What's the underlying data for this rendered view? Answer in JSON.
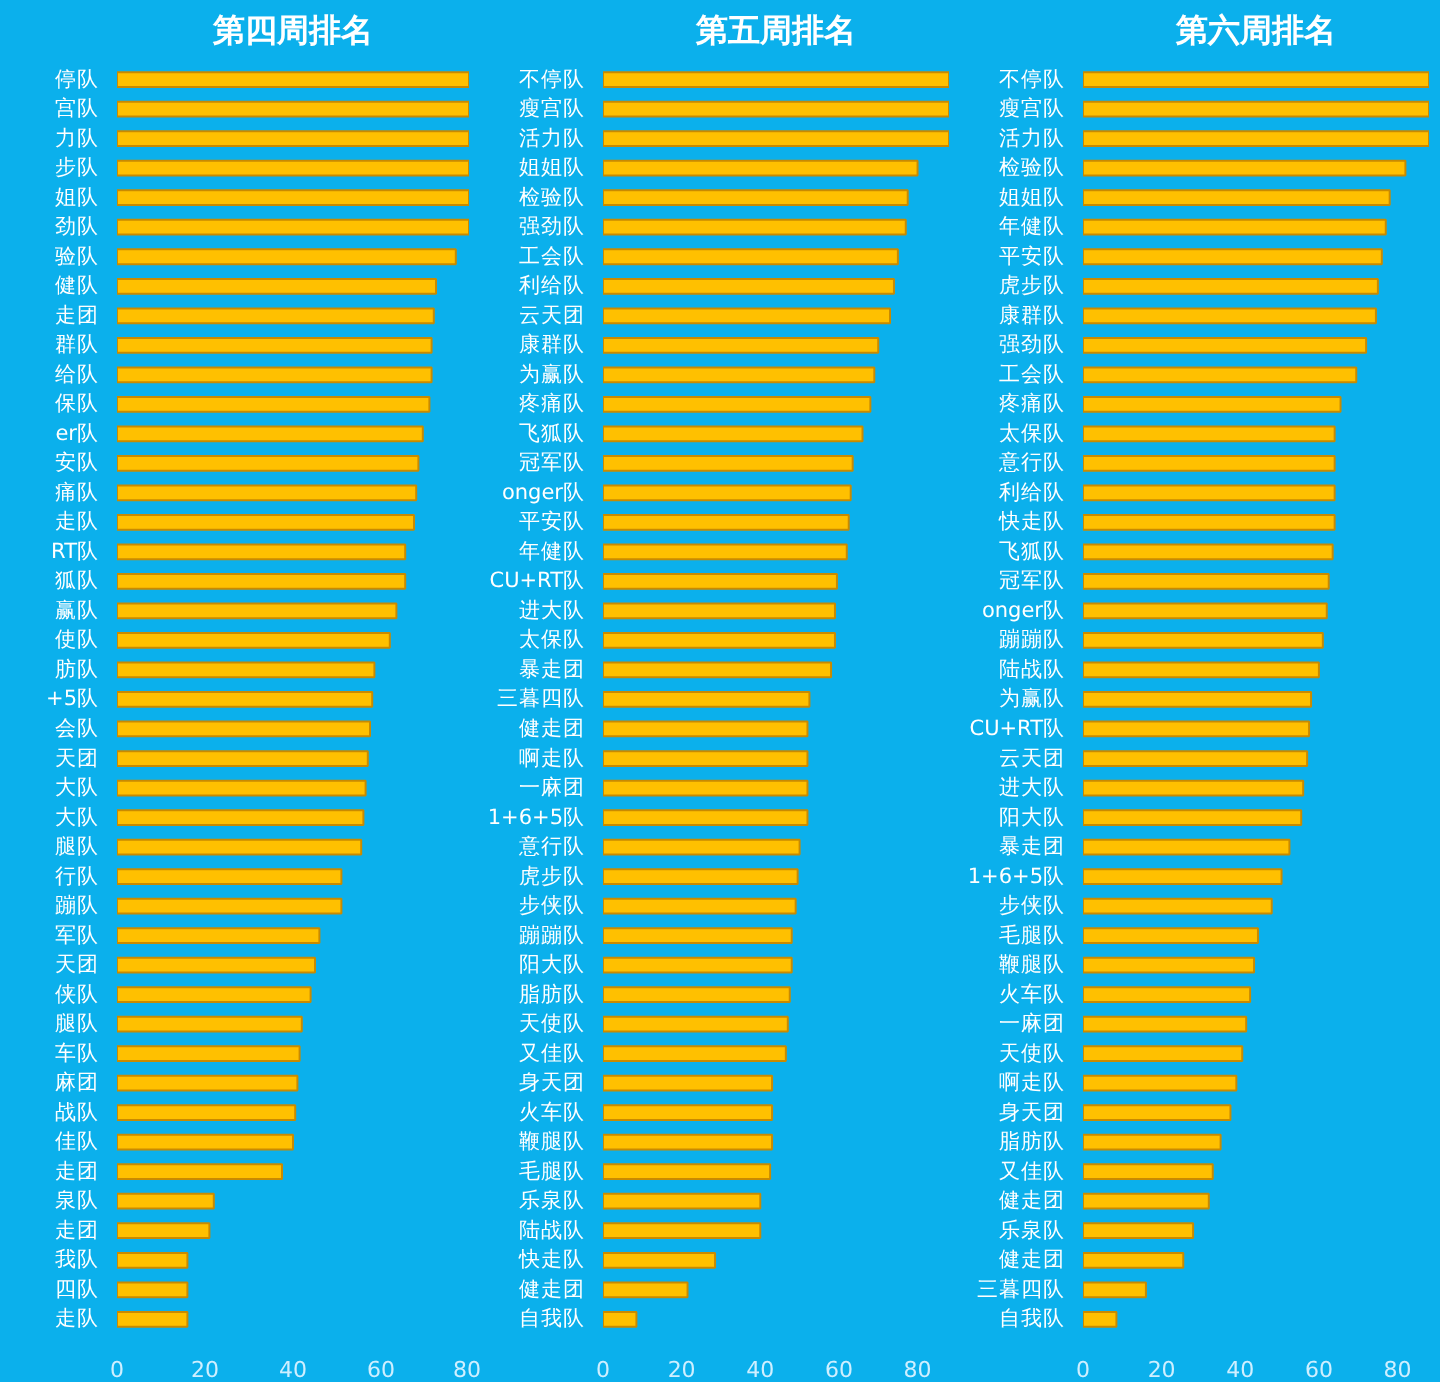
{
  "chart_data": [
    {
      "type": "bar",
      "orientation": "horizontal",
      "title": "第四周排名",
      "color": "#ffc000",
      "xlim": [
        0,
        80
      ],
      "xticks": [
        0,
        20,
        40,
        60,
        80
      ],
      "categories": [
        "停队",
        "宫队",
        "力队",
        "步队",
        "姐队",
        "劲队",
        "验队",
        "健队",
        "走团",
        "群队",
        "给队",
        "保队",
        "er队",
        "安队",
        "痛队",
        "走队",
        "RT队",
        "狐队",
        "赢队",
        "使队",
        "肪队",
        "+5队",
        "会队",
        "天团",
        "大队",
        "大队",
        "腿队",
        "行队",
        "蹦队",
        "军队",
        "天团",
        "侠队",
        "腿队",
        "车队",
        "麻团",
        "战队",
        "佳队",
        "走团",
        "泉队",
        "走团",
        "我队",
        "四队",
        "走队"
      ],
      "values": [
        80,
        80,
        80,
        80,
        80,
        80,
        77,
        72.5,
        72,
        71.5,
        71.5,
        71,
        69.5,
        68.5,
        68,
        67.5,
        65.5,
        65.5,
        63.5,
        62,
        58.5,
        58,
        57.5,
        57,
        56.5,
        56,
        55.5,
        51,
        51,
        46,
        45,
        44,
        42,
        41.5,
        41,
        40.5,
        40,
        37.5,
        22,
        21,
        16,
        16,
        16
      ]
    },
    {
      "type": "bar",
      "orientation": "horizontal",
      "title": "第五周排名",
      "color": "#ffc000",
      "xlim": [
        0,
        88
      ],
      "xticks": [
        0,
        20,
        40,
        60,
        80
      ],
      "categories": [
        "不停队",
        "瘦宫队",
        "活力队",
        "姐姐队",
        "检验队",
        "强劲队",
        "工会队",
        "利给队",
        "云天团",
        "康群队",
        "为赢队",
        "疼痛队",
        "飞狐队",
        "冠军队",
        "onger队",
        "平安队",
        "年健队",
        "CU+RT队",
        "进大队",
        "太保队",
        "暴走团",
        "三暮四队",
        "健走团",
        "啊走队",
        "一麻团",
        "1+6+5队",
        "意行队",
        "虎步队",
        "步侠队",
        "蹦蹦队",
        "阳大队",
        "脂肪队",
        "天使队",
        "又佳队",
        "身天团",
        "火车队",
        "鞭腿队",
        "毛腿队",
        "乐泉队",
        "陆战队",
        "快走队",
        "健走团",
        "自我队"
      ],
      "values": [
        88,
        88,
        88,
        80,
        77.5,
        77,
        75,
        74,
        73,
        70,
        69,
        68,
        66,
        63.5,
        63,
        62.5,
        62,
        59.5,
        59,
        59,
        58,
        52.5,
        52,
        52,
        52,
        52,
        50,
        49.5,
        49,
        48,
        48,
        47.5,
        47,
        46.5,
        43,
        43,
        43,
        42.5,
        40,
        40,
        28.5,
        21.5,
        8.5
      ]
    },
    {
      "type": "bar",
      "orientation": "horizontal",
      "title": "第六周排名",
      "color": "#ffc000",
      "xlim": [
        0,
        88
      ],
      "xticks": [
        0,
        20,
        40,
        60,
        80
      ],
      "categories": [
        "不停队",
        "瘦宫队",
        "活力队",
        "检验队",
        "姐姐队",
        "年健队",
        "平安队",
        "虎步队",
        "康群队",
        "强劲队",
        "工会队",
        "疼痛队",
        "太保队",
        "意行队",
        "利给队",
        "快走队",
        "飞狐队",
        "冠军队",
        "onger队",
        "蹦蹦队",
        "陆战队",
        "为赢队",
        "CU+RT队",
        "云天团",
        "进大队",
        "阳大队",
        "暴走团",
        "1+6+5队",
        "步侠队",
        "毛腿队",
        "鞭腿队",
        "火车队",
        "一麻团",
        "天使队",
        "啊走队",
        "身天团",
        "脂肪队",
        "又佳队",
        "健走团",
        "乐泉队",
        "健走团",
        "三暮四队",
        "自我队"
      ],
      "values": [
        88,
        88,
        88,
        82,
        78,
        77,
        76,
        75,
        74.5,
        72,
        69.5,
        65.5,
        64,
        64,
        64,
        64,
        63.5,
        62.5,
        62,
        61,
        60,
        58,
        57.5,
        57,
        56,
        55.5,
        52.5,
        50.5,
        48,
        44.5,
        43.5,
        42.5,
        41.5,
        40.5,
        39,
        37.5,
        35,
        33,
        32,
        28,
        25.5,
        16,
        8.5
      ]
    }
  ]
}
